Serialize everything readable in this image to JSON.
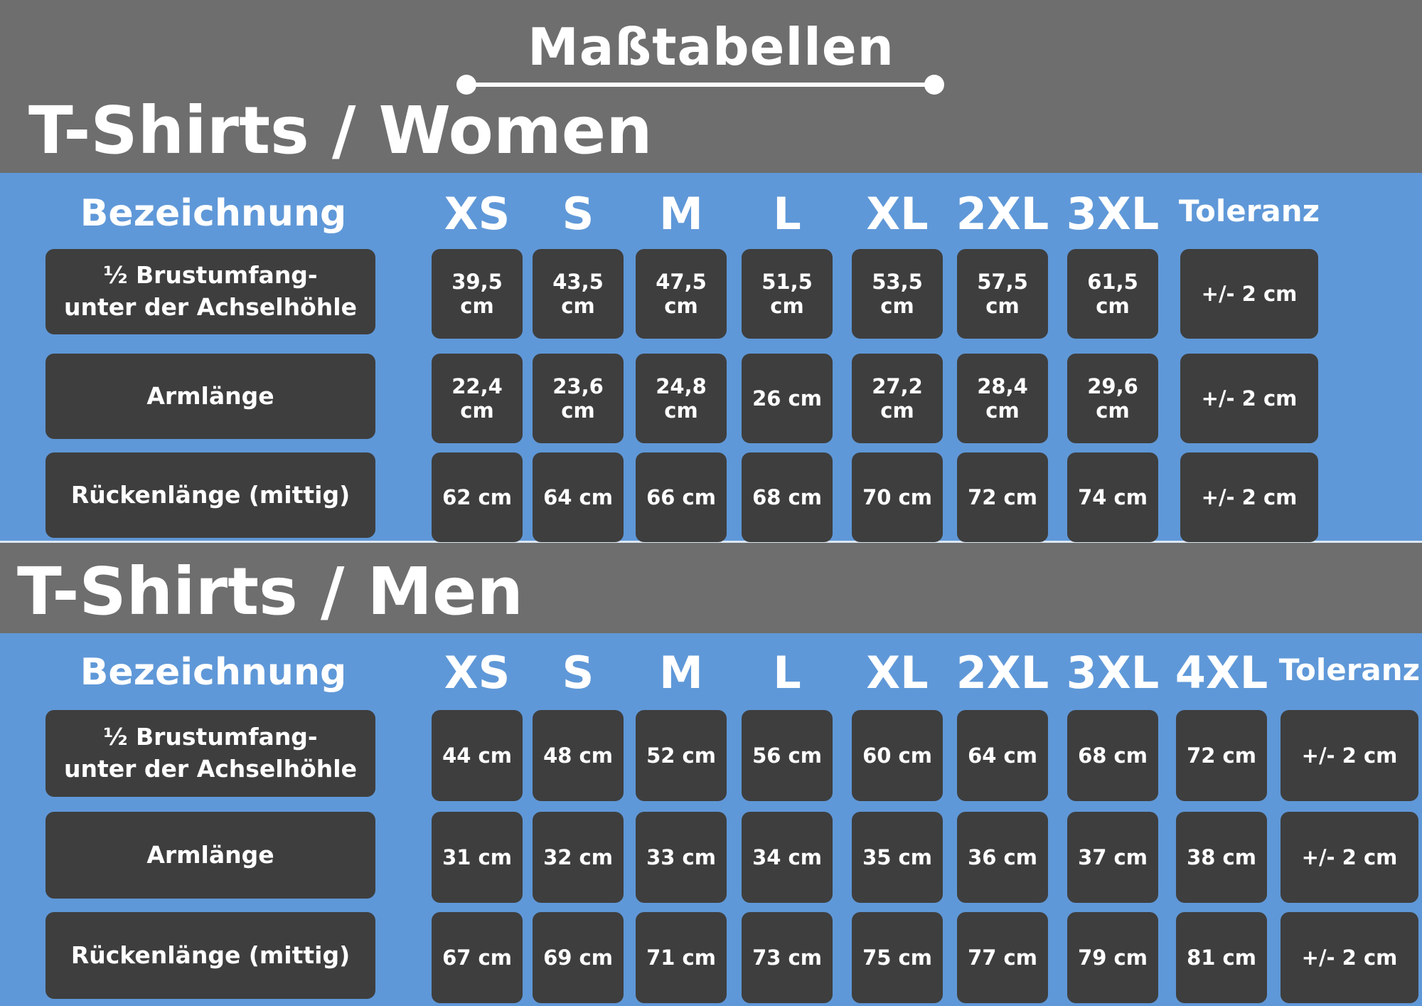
{
  "title": "Maßtabellen",
  "women": {
    "heading": "T-Shirts / Women",
    "label_header": "Bezeichnung",
    "sizes": [
      "XS",
      "S",
      "M",
      "L",
      "XL",
      "2XL",
      "3XL"
    ],
    "tolerance_header": "Toleranz",
    "rows": [
      {
        "label": "½ Brustumfang-\nunter der Achselhöhle",
        "values": [
          "39,5 cm",
          "43,5 cm",
          "47,5 cm",
          "51,5 cm",
          "53,5 cm",
          "57,5 cm",
          "61,5 cm"
        ],
        "tolerance": "+/- 2 cm"
      },
      {
        "label": "Armlänge",
        "values": [
          "22,4 cm",
          "23,6 cm",
          "24,8 cm",
          "26 cm",
          "27,2 cm",
          "28,4 cm",
          "29,6 cm"
        ],
        "tolerance": "+/- 2 cm"
      },
      {
        "label": "Rückenlänge (mittig)",
        "values": [
          "62 cm",
          "64 cm",
          "66 cm",
          "68 cm",
          "70 cm",
          "72 cm",
          "74 cm"
        ],
        "tolerance": "+/- 2 cm"
      }
    ]
  },
  "men": {
    "heading": "T-Shirts / Men",
    "label_header": "Bezeichnung",
    "sizes": [
      "XS",
      "S",
      "M",
      "L",
      "XL",
      "2XL",
      "3XL",
      "4XL"
    ],
    "tolerance_header": "Toleranz",
    "rows": [
      {
        "label": "½ Brustumfang-\nunter der Achselhöhle",
        "values": [
          "44 cm",
          "48 cm",
          "52 cm",
          "56 cm",
          "60 cm",
          "64 cm",
          "68 cm",
          "72 cm"
        ],
        "tolerance": "+/- 2 cm"
      },
      {
        "label": "Armlänge",
        "values": [
          "31 cm",
          "32 cm",
          "33 cm",
          "34 cm",
          "35 cm",
          "36 cm",
          "37 cm",
          "38 cm"
        ],
        "tolerance": "+/- 2 cm"
      },
      {
        "label": "Rückenlänge (mittig)",
        "values": [
          "67 cm",
          "69 cm",
          "71 cm",
          "73 cm",
          "75 cm",
          "77 cm",
          "79 cm",
          "81 cm"
        ],
        "tolerance": "+/- 2 cm"
      }
    ]
  }
}
